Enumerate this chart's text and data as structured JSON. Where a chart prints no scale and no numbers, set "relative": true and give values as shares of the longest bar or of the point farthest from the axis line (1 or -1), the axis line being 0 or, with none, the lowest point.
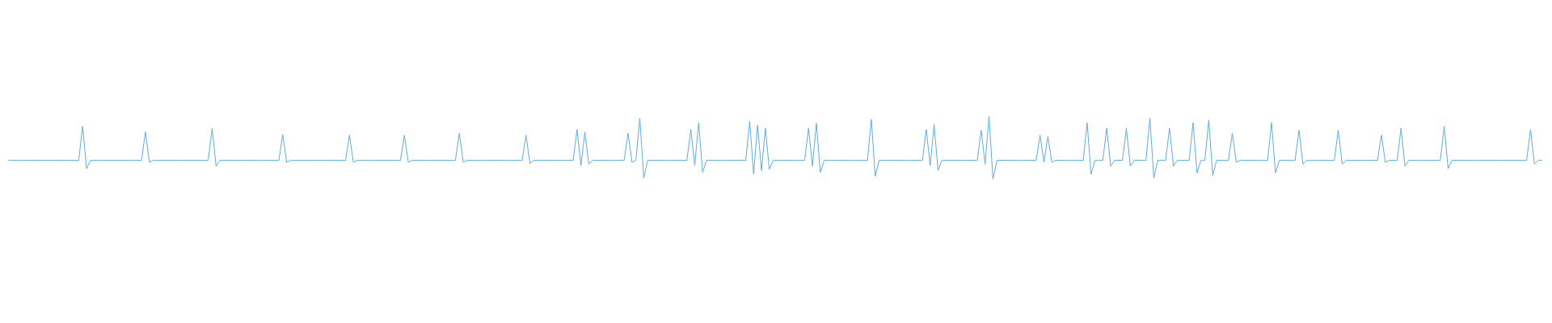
{
  "chart_data": {
    "type": "line",
    "relative": true,
    "marker": "none",
    "line_style": "solid",
    "grid": false,
    "legend": false,
    "tick_labels": false,
    "categories": [
      null,
      null,
      null,
      null,
      null,
      null,
      null,
      null,
      null,
      null,
      null,
      null,
      null,
      null,
      null,
      null,
      null,
      null,
      null,
      null,
      null,
      null,
      null,
      null,
      null,
      null,
      null,
      null,
      null,
      null,
      null,
      null,
      null,
      null,
      null,
      null,
      null,
      null,
      null,
      null,
      null,
      null,
      null,
      null,
      null,
      null,
      null,
      null,
      null,
      null,
      null,
      null,
      null,
      null,
      null,
      null,
      null,
      null,
      null,
      null,
      null,
      null,
      null,
      null,
      null,
      null,
      null,
      null,
      null,
      null,
      null,
      null,
      null,
      null,
      null,
      null,
      null,
      null,
      null,
      null,
      null,
      null,
      null,
      null,
      null,
      null,
      null,
      null,
      null,
      null,
      null,
      null,
      null,
      null,
      null,
      null,
      null,
      null,
      null,
      null,
      null,
      null,
      null,
      null,
      null,
      null,
      null,
      null,
      null,
      null,
      null,
      null,
      null,
      null,
      null,
      null,
      null,
      null,
      null,
      null,
      null,
      null,
      null,
      null,
      null,
      null,
      null,
      null,
      null,
      null,
      null,
      null,
      null,
      null,
      null,
      null,
      null,
      null,
      null,
      null,
      null,
      null,
      null,
      null,
      null,
      null,
      null,
      null,
      null,
      null,
      null,
      null,
      null,
      null,
      null,
      null,
      null,
      null,
      null,
      null,
      null,
      null,
      null,
      null,
      null,
      null,
      null,
      null,
      null,
      null,
      null,
      null,
      null,
      null,
      null,
      null,
      null,
      null,
      null,
      null,
      null,
      null,
      null,
      null,
      null,
      null,
      null,
      null,
      null,
      null,
      null,
      null,
      null,
      null,
      null,
      null,
      null,
      null,
      null,
      null,
      null,
      null,
      null,
      null,
      null,
      null,
      null,
      null,
      null,
      null,
      null,
      null,
      null,
      null,
      null,
      null,
      null,
      null,
      null,
      null,
      null,
      null,
      null,
      null,
      null,
      null,
      null,
      null,
      null,
      null,
      null,
      null,
      null,
      null,
      null,
      null,
      null,
      null,
      null,
      null,
      null,
      null,
      null,
      null,
      null,
      null,
      null,
      null,
      null,
      null,
      null,
      null,
      null,
      null,
      null,
      null,
      null,
      null,
      null,
      null,
      null,
      null,
      null,
      null,
      null,
      null,
      null,
      null,
      null,
      null,
      null,
      null,
      null,
      null,
      null,
      null,
      null,
      null,
      null,
      null,
      null,
      null,
      null,
      null,
      null,
      null,
      null,
      null,
      null,
      null,
      null,
      null,
      null,
      null,
      null,
      null,
      null,
      null,
      null,
      null,
      null,
      null,
      null,
      null,
      null,
      null,
      null,
      null,
      null,
      null,
      null,
      null,
      null,
      null,
      null,
      null,
      null,
      null,
      null,
      null,
      null,
      null,
      null,
      null,
      null,
      null,
      null,
      null,
      null,
      null,
      null,
      null,
      null,
      null,
      null,
      null,
      null,
      null,
      null,
      null,
      null,
      null,
      null,
      null,
      null,
      null,
      null,
      null,
      null,
      null,
      null,
      null,
      null,
      null,
      null,
      null,
      null,
      null,
      null,
      null,
      null,
      null,
      null,
      null,
      null,
      null,
      null,
      null,
      null,
      null,
      null,
      null,
      null,
      null,
      null,
      null,
      null,
      null,
      null,
      null,
      null,
      null,
      null,
      null,
      null,
      null,
      null,
      null,
      null,
      null,
      null,
      null
    ],
    "series": [
      {
        "color": "#5dade2",
        "values": [
          0.3,
          0.3,
          0.3,
          0.3,
          0.3,
          0.3,
          0.3,
          0.3,
          0.3,
          0.3,
          0.3,
          0.3,
          0.3,
          0.3,
          0.3,
          0.3,
          0.3,
          0.3,
          0.3,
          0.84,
          0.17,
          0.3,
          0.3,
          0.3,
          0.3,
          0.3,
          0.3,
          0.3,
          0.3,
          0.3,
          0.3,
          0.3,
          0.3,
          0.3,
          0.3,
          0.75,
          0.27,
          0.3,
          0.3,
          0.3,
          0.3,
          0.3,
          0.3,
          0.3,
          0.3,
          0.3,
          0.3,
          0.3,
          0.3,
          0.3,
          0.3,
          0.3,
          0.81,
          0.21,
          0.3,
          0.3,
          0.3,
          0.3,
          0.3,
          0.3,
          0.3,
          0.3,
          0.3,
          0.3,
          0.3,
          0.3,
          0.3,
          0.3,
          0.3,
          0.3,
          0.71,
          0.27,
          0.3,
          0.3,
          0.3,
          0.3,
          0.3,
          0.3,
          0.3,
          0.3,
          0.3,
          0.3,
          0.3,
          0.3,
          0.3,
          0.3,
          0.3,
          0.7,
          0.27,
          0.3,
          0.3,
          0.3,
          0.3,
          0.3,
          0.3,
          0.3,
          0.3,
          0.3,
          0.3,
          0.3,
          0.3,
          0.7,
          0.27,
          0.3,
          0.3,
          0.3,
          0.3,
          0.3,
          0.3,
          0.3,
          0.3,
          0.3,
          0.3,
          0.3,
          0.3,
          0.73,
          0.27,
          0.3,
          0.3,
          0.3,
          0.3,
          0.3,
          0.3,
          0.3,
          0.3,
          0.3,
          0.3,
          0.3,
          0.3,
          0.3,
          0.3,
          0.3,
          0.7,
          0.25,
          0.3,
          0.3,
          0.3,
          0.3,
          0.3,
          0.3,
          0.3,
          0.3,
          0.3,
          0.3,
          0.3,
          0.79,
          0.22,
          0.75,
          0.24,
          0.3,
          0.3,
          0.3,
          0.3,
          0.3,
          0.3,
          0.3,
          0.3,
          0.3,
          0.73,
          0.27,
          0.3,
          0.97,
          0.02,
          0.3,
          0.3,
          0.3,
          0.3,
          0.3,
          0.3,
          0.3,
          0.3,
          0.3,
          0.3,
          0.3,
          0.79,
          0.22,
          0.9,
          0.11,
          0.3,
          0.3,
          0.3,
          0.3,
          0.3,
          0.3,
          0.3,
          0.3,
          0.3,
          0.3,
          0.3,
          0.92,
          0.08,
          0.86,
          0.14,
          0.81,
          0.16,
          0.3,
          0.3,
          0.3,
          0.3,
          0.3,
          0.3,
          0.3,
          0.3,
          0.3,
          0.81,
          0.21,
          0.89,
          0.11,
          0.3,
          0.3,
          0.3,
          0.3,
          0.3,
          0.3,
          0.3,
          0.3,
          0.3,
          0.3,
          0.3,
          0.3,
          0.95,
          0.05,
          0.3,
          0.3,
          0.3,
          0.3,
          0.3,
          0.3,
          0.3,
          0.3,
          0.3,
          0.3,
          0.3,
          0.3,
          0.79,
          0.22,
          0.87,
          0.14,
          0.3,
          0.3,
          0.3,
          0.3,
          0.3,
          0.3,
          0.3,
          0.3,
          0.3,
          0.3,
          0.78,
          0.24,
          1,
          0,
          0.3,
          0.3,
          0.3,
          0.3,
          0.3,
          0.3,
          0.3,
          0.3,
          0.3,
          0.3,
          0.3,
          0.7,
          0.27,
          0.68,
          0.27,
          0.3,
          0.3,
          0.3,
          0.3,
          0.3,
          0.3,
          0.3,
          0.3,
          0.9,
          0.08,
          0.3,
          0.3,
          0.3,
          0.81,
          0.21,
          0.3,
          0.3,
          0.3,
          0.81,
          0.21,
          0.3,
          0.3,
          0.3,
          0.3,
          0.97,
          0.02,
          0.3,
          0.3,
          0.3,
          0.81,
          0.21,
          0.3,
          0.3,
          0.3,
          0.3,
          0.9,
          0.1,
          0.3,
          0.3,
          0.94,
          0.06,
          0.3,
          0.3,
          0.3,
          0.3,
          0.73,
          0.27,
          0.3,
          0.3,
          0.3,
          0.3,
          0.3,
          0.3,
          0.3,
          0.3,
          0.9,
          0.1,
          0.3,
          0.3,
          0.3,
          0.3,
          0.3,
          0.78,
          0.24,
          0.3,
          0.3,
          0.3,
          0.3,
          0.3,
          0.3,
          0.3,
          0.3,
          0.78,
          0.24,
          0.3,
          0.3,
          0.3,
          0.3,
          0.3,
          0.3,
          0.3,
          0.3,
          0.3,
          0.7,
          0.27,
          0.3,
          0.3,
          0.3,
          0.81,
          0.21,
          0.3,
          0.3,
          0.3,
          0.3,
          0.3,
          0.3,
          0.3,
          0.3,
          0.3,
          0.84,
          0.17,
          0.3,
          0.3,
          0.3,
          0.3,
          0.3,
          0.3,
          0.3,
          0.3,
          0.3,
          0.3,
          0.3,
          0.3,
          0.3,
          0.3,
          0.3,
          0.3,
          0.3,
          0.3,
          0.3,
          0.3,
          0.79,
          0.24,
          0.3,
          0.3
        ]
      }
    ]
  }
}
